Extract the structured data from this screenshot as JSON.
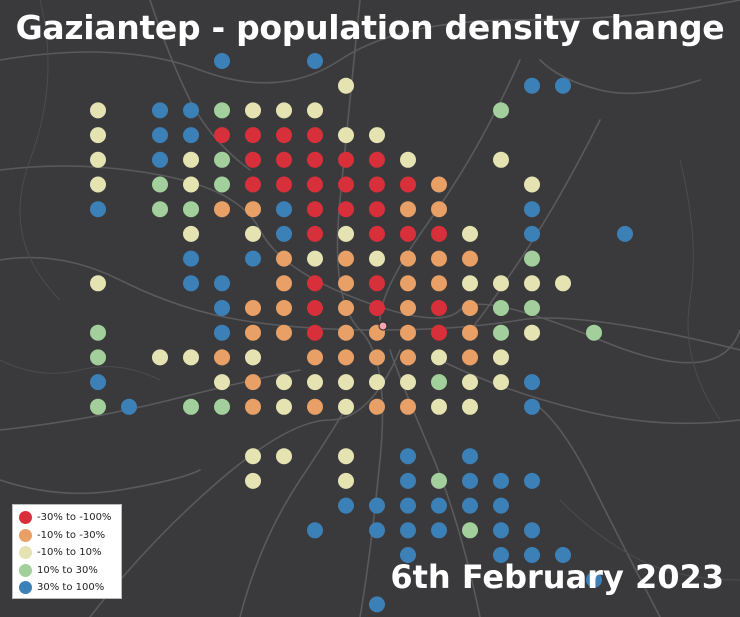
{
  "title": "Gaziantep - population density change",
  "date": "6th February 2023",
  "classes": [
    {
      "id": "d1",
      "label": "-30% to -100%",
      "color": "#d7303a"
    },
    {
      "id": "d2",
      "label": "-10% to -30%",
      "color": "#e8a066"
    },
    {
      "id": "d3",
      "label": "-10% to 10%",
      "color": "#e5e3b2"
    },
    {
      "id": "d4",
      "label": "10% to 30%",
      "color": "#a3cf9c"
    },
    {
      "id": "d5",
      "label": "30% to 100%",
      "color": "#3c80b8"
    }
  ],
  "grid_rows": [
    "....5..5..........",
    "........3.....55..",
    "3.554333.....4....",
    "3.55111133........",
    "3.534111113..3....",
    "3.4341111112..3...",
    "5.4422511122..5...",
    "...3.35131113.5..5",
    "...5.52323222.4...",
    "3..55.2121223333..",
    "....52212121244..",
    "4...52212221243.4",
    "4.3323.2222323...",
    "5...32333334335...",
    "45.4423232233.5...",
    "..",
    ".....33.3.5.5....",
    ".....3..3.54555.",
    "........555555...",
    ".......5.555455..",
    "5.........5..555..",
    "5...............5.",
    ".........5........"
  ],
  "markers": [
    {
      "name": "city-centre-marker",
      "color": "#f4a6b0"
    }
  ]
}
